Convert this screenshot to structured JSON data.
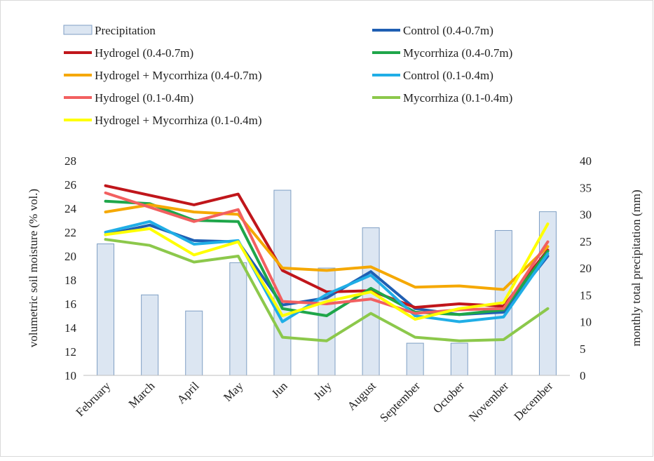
{
  "chart_data": {
    "type": "bar+line",
    "categories": [
      "February",
      "March",
      "April",
      "May",
      "Jun",
      "July",
      "August",
      "September",
      "October",
      "November",
      "December"
    ],
    "ylabel": "volumetric soil moisture  (% vol.)",
    "y2label": "monthly total precipitation (mm)",
    "ylim": [
      10,
      28
    ],
    "y2lim": [
      0,
      40
    ],
    "yticks": [
      "10",
      "12",
      "14",
      "16",
      "18",
      "20",
      "22",
      "24",
      "26",
      "28"
    ],
    "y2ticks": [
      "0",
      "5",
      "10",
      "15",
      "20",
      "25",
      "30",
      "35",
      "40"
    ],
    "grid": false,
    "legend_position": "top",
    "bars": {
      "name": "Precipitation",
      "color": "#dce6f2",
      "edge": "#7f9fc4",
      "values": [
        24.5,
        15,
        12,
        21,
        34.5,
        20,
        27.5,
        6,
        6,
        27,
        30.5
      ]
    },
    "series": [
      {
        "name": "Control (0.4-0.7m)",
        "color": "#1f5fb3",
        "values": [
          21.8,
          22.6,
          21.3,
          21.2,
          15.9,
          16.5,
          18.7,
          15.6,
          15.1,
          15.3,
          20.0
        ]
      },
      {
        "name": "Hydrogel (0.4-0.7m)",
        "color": "#c0161b",
        "values": [
          25.9,
          25.1,
          24.3,
          25.2,
          18.8,
          17.0,
          17.1,
          15.7,
          16.0,
          15.8,
          20.5
        ]
      },
      {
        "name": "Mycorrhiza (0.4-0.7m)",
        "color": "#1fa64a",
        "values": [
          24.6,
          24.4,
          23.0,
          22.9,
          15.6,
          15.0,
          17.3,
          15.3,
          15.1,
          15.5,
          20.4
        ]
      },
      {
        "name": "Hydrogel + Mycorrhiza (0.4-0.7m)",
        "color": "#f5a800",
        "values": [
          23.7,
          24.3,
          23.7,
          23.5,
          19.0,
          18.8,
          19.1,
          17.4,
          17.5,
          17.2,
          20.8
        ]
      },
      {
        "name": "Control (0.1-0.4m)",
        "color": "#20aee6",
        "values": [
          22.0,
          22.9,
          21.0,
          21.3,
          14.5,
          16.8,
          18.4,
          15.0,
          14.5,
          14.9,
          20.2
        ]
      },
      {
        "name": "Hydrogel (0.1-0.4m)",
        "color": "#f26060",
        "values": [
          25.3,
          24.1,
          22.9,
          23.9,
          16.2,
          16.0,
          16.4,
          15.2,
          15.5,
          15.6,
          21.2
        ]
      },
      {
        "name": "Mycorrhiza (0.1-0.4m)",
        "color": "#8cc84b",
        "values": [
          21.4,
          20.9,
          19.5,
          20.0,
          13.2,
          12.9,
          15.2,
          13.2,
          12.9,
          13.0,
          15.6
        ]
      },
      {
        "name": "Hydrogel + Mycorrhiza (0.1-0.4m)",
        "color": "#ffff00",
        "values": [
          21.8,
          22.3,
          20.1,
          21.2,
          15.0,
          16.2,
          17.0,
          14.7,
          15.6,
          16.1,
          22.7
        ]
      }
    ]
  }
}
